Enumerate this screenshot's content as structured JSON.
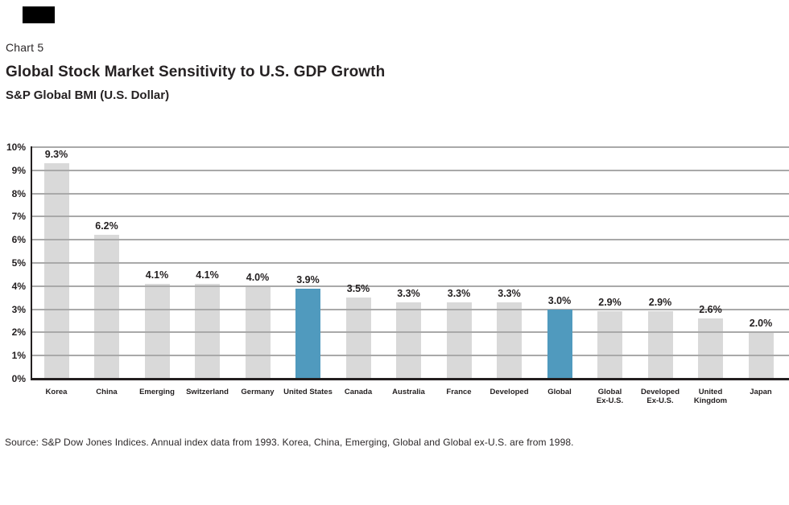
{
  "header": {
    "chart_label": "Chart 5",
    "title": "Global Stock Market Sensitivity to U.S. GDP Growth",
    "subtitle": "S&P Global BMI (U.S. Dollar)"
  },
  "footer": {
    "source": "Source: S&P Dow Jones Indices. Annual index data from 1993. Korea, China, Emerging, Global and Global ex-U.S. are from 1998."
  },
  "colors": {
    "bar_default": "#d9d9d9",
    "bar_highlight": "#509abe",
    "gridline": "#a9a9a9",
    "axis": "#231f20",
    "logo_block": "#000000"
  },
  "chart_data": {
    "type": "bar",
    "title": "Global Stock Market Sensitivity to U.S. GDP Growth",
    "subtitle": "S&P Global BMI (U.S. Dollar)",
    "categories": [
      "Korea",
      "China",
      "Emerging",
      "Switzerland",
      "Germany",
      "United States",
      "Canada",
      "Australia",
      "France",
      "Developed",
      "Global",
      "Global Ex-U.S.",
      "Developed Ex-U.S.",
      "United Kingdom",
      "Japan"
    ],
    "tick_labels": [
      "Korea",
      "China",
      "Emerging",
      "Switzerland",
      "Germany",
      "United States",
      "Canada",
      "Australia",
      "France",
      "Developed",
      "Global",
      "Global\nEx-U.S.",
      "Developed\nEx-U.S.",
      "United\nKingdom",
      "Japan"
    ],
    "values": [
      9.3,
      6.2,
      4.1,
      4.1,
      4.0,
      3.9,
      3.5,
      3.3,
      3.3,
      3.3,
      3.0,
      2.9,
      2.9,
      2.6,
      2.0
    ],
    "value_labels": [
      "9.3%",
      "6.2%",
      "4.1%",
      "4.1%",
      "4.0%",
      "3.9%",
      "3.5%",
      "3.3%",
      "3.3%",
      "3.3%",
      "3.0%",
      "2.9%",
      "2.9%",
      "2.6%",
      "2.0%"
    ],
    "highlighted": [
      "United States",
      "Global"
    ],
    "xlabel": "",
    "ylabel": "",
    "ylim": [
      0,
      10
    ],
    "ytick_step": 1,
    "ytick_labels": [
      "0%",
      "1%",
      "2%",
      "3%",
      "4%",
      "5%",
      "6%",
      "7%",
      "8%",
      "9%",
      "10%"
    ],
    "grid": true,
    "legend": false
  }
}
